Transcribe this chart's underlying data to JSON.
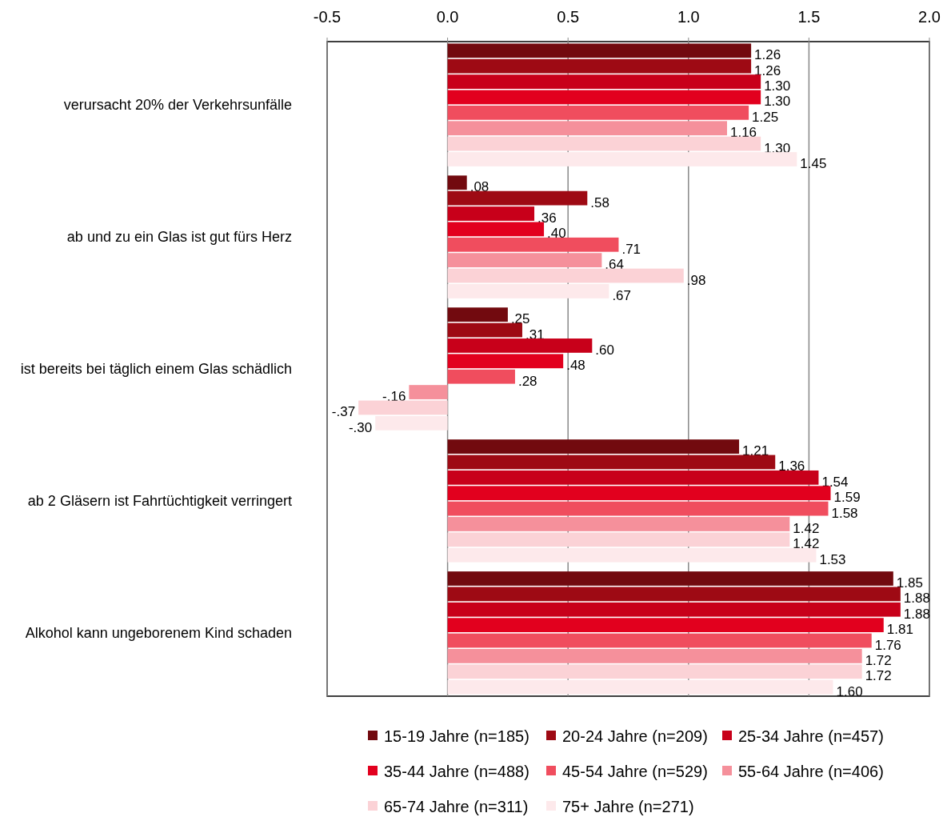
{
  "chart_data": {
    "type": "bar",
    "orientation": "horizontal",
    "categories": [
      "verursacht 20% der Verkehrsunfälle",
      "ab und zu ein Glas ist gut fürs Herz",
      "ist bereits bei täglich einem Glas schädlich",
      "ab 2 Gläsern ist Fahrtüchtigkeit verringert",
      "Alkohol kann ungeborenem Kind schaden"
    ],
    "series": [
      {
        "name": "15-19 Jahre (n=185)",
        "color": "#720a0f",
        "values": [
          1.26,
          0.08,
          0.25,
          1.21,
          1.85
        ],
        "value_labels": [
          "1.26",
          ".08",
          ".25",
          "1.21",
          "1.85"
        ]
      },
      {
        "name": "20-24  Jahre (n=209)",
        "color": "#9e0a14",
        "values": [
          1.26,
          0.58,
          0.31,
          1.36,
          1.88
        ],
        "value_labels": [
          "1.26",
          ".58",
          ".31",
          "1.36",
          "1.88"
        ]
      },
      {
        "name": "25-34  Jahre (n=457)",
        "color": "#c8001a",
        "values": [
          1.3,
          0.36,
          0.6,
          1.54,
          1.88
        ],
        "value_labels": [
          "1.30",
          ".36",
          ".60",
          "1.54",
          "1.88"
        ]
      },
      {
        "name": "35-44  Jahre (n=488)",
        "color": "#e2001e",
        "values": [
          1.3,
          0.4,
          0.48,
          1.59,
          1.81
        ],
        "value_labels": [
          "1.30",
          ".40",
          ".48",
          "1.59",
          "1.81"
        ]
      },
      {
        "name": "45-54  Jahre (n=529)",
        "color": "#f04d5e",
        "values": [
          1.25,
          0.71,
          0.28,
          1.58,
          1.76
        ],
        "value_labels": [
          "1.25",
          ".71",
          ".28",
          "1.58",
          "1.76"
        ]
      },
      {
        "name": "55-64  Jahre (n=406)",
        "color": "#f5909b",
        "values": [
          1.16,
          0.64,
          -0.16,
          1.42,
          1.72
        ],
        "value_labels": [
          "1.16",
          ".64",
          "-.16",
          "1.42",
          "1.72"
        ]
      },
      {
        "name": "65-74  Jahre (n=311)",
        "color": "#fbd2d6",
        "values": [
          1.3,
          0.98,
          -0.37,
          1.42,
          1.72
        ],
        "value_labels": [
          "1.30",
          ".98",
          "-.37",
          "1.42",
          "1.72"
        ]
      },
      {
        "name": "75+ Jahre (n=271)",
        "color": "#fde9eb",
        "values": [
          1.45,
          0.67,
          -0.3,
          1.53,
          1.6
        ],
        "value_labels": [
          "1.45",
          ".67",
          "-.30",
          "1.53",
          "1.60"
        ]
      }
    ],
    "xlim": [
      -0.5,
      2.0
    ],
    "xticks": [
      -0.5,
      {
        "value": 0,
        "label": "0.0"
      },
      0.5,
      {
        "value": 1,
        "label": "1.0"
      },
      1.5,
      {
        "value": 2,
        "label": "2.0"
      }
    ],
    "grid": "x",
    "legend": "bottom"
  }
}
